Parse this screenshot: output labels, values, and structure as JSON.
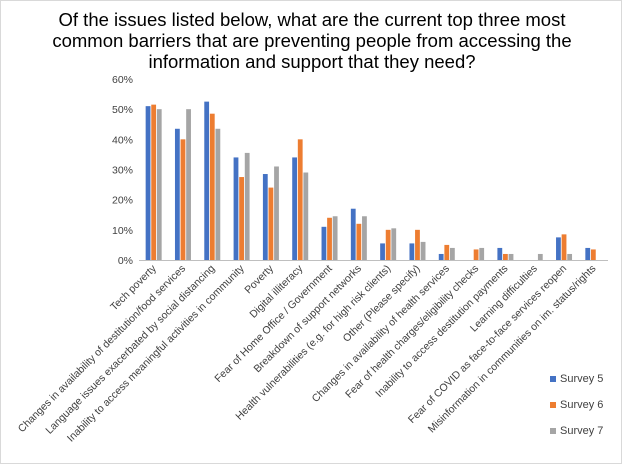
{
  "chart_data": {
    "type": "bar",
    "title": "Of the issues listed below, what are the current top three most common barriers that are preventing people from accessing the information and support that they need?",
    "categories": [
      "Tech poverty",
      "Changes in availability of destitution/food services",
      "Language issues exacerbated by social distancing",
      "Inability to access meaningful activities in community",
      "Poverty",
      "Digital illiteracy",
      "Fear of Home Office / Government",
      "Breakdown of support networks",
      "Health vulnerabilities (e.g. for high risk clients)",
      "Other (Please specify)",
      "Changes in availability of health services",
      "Fear of health charges/eligibility checks",
      "Inability to access destitution payments",
      "Learning difficulties",
      "Fear of COVID as face-to-face services reopen",
      "Misinformation in communities on im. status/rights"
    ],
    "series": [
      {
        "name": "Survey 5",
        "color": "#4472c4",
        "values": [
          51,
          43.5,
          52.5,
          34,
          28.5,
          34,
          11,
          17,
          5.5,
          5.5,
          2,
          0,
          4,
          0,
          7.5,
          4
        ]
      },
      {
        "name": "Survey 6",
        "color": "#ed7d31",
        "values": [
          51.5,
          40,
          48.5,
          27.5,
          24,
          40,
          14,
          12,
          10,
          10,
          5,
          3.5,
          2,
          0,
          8.5,
          3.5
        ]
      },
      {
        "name": "Survey 7",
        "color": "#a5a5a5",
        "values": [
          50,
          50,
          43.5,
          35.5,
          31,
          29,
          14.5,
          14.5,
          10.5,
          6,
          4,
          4,
          2,
          2,
          2,
          0
        ]
      }
    ],
    "ylim": [
      0,
      60
    ],
    "yticks": [
      0,
      10,
      20,
      30,
      40,
      50,
      60
    ],
    "ytick_format": "percent",
    "grid": false,
    "legend_position": "bottom-right"
  }
}
